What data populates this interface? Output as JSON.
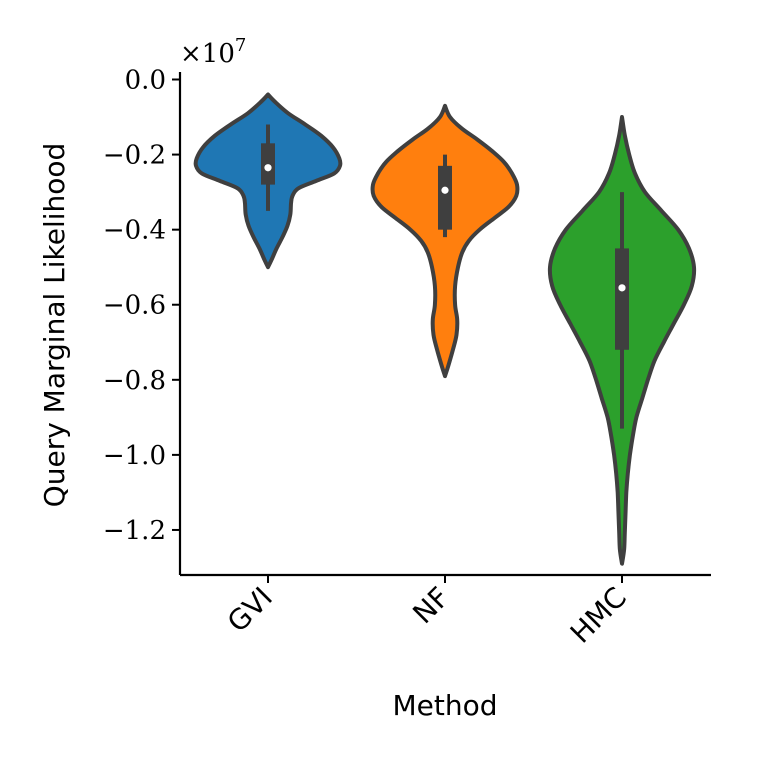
{
  "chart_data": {
    "type": "violin",
    "offset_label": "×10^7",
    "offset_base": "×10",
    "offset_exp": "7",
    "xlabel": "Method",
    "ylabel": "Query Marginal Likelihood",
    "ylim": [
      -1.32,
      0.02
    ],
    "y_ticks": [
      0.0,
      -0.2,
      -0.4,
      -0.6,
      -0.8,
      -1.0,
      -1.2
    ],
    "y_tick_labels": [
      "0.0",
      "−0.2",
      "−0.4",
      "−0.6",
      "−0.8",
      "−1.0",
      "−1.2"
    ],
    "categories": [
      "GVI",
      "NF",
      "HMC"
    ],
    "grid": false,
    "legend": "none",
    "violins": [
      {
        "category": "GVI",
        "color": "#1f77b4",
        "min": -0.5,
        "q1": -0.28,
        "median": -0.235,
        "q3": -0.17,
        "max": -0.04,
        "whisker_low": -0.35,
        "whisker_high": -0.12,
        "profile": [
          [
            -0.04,
            0.0
          ],
          [
            -0.06,
            0.1
          ],
          [
            -0.09,
            0.28
          ],
          [
            -0.12,
            0.52
          ],
          [
            -0.15,
            0.74
          ],
          [
            -0.18,
            0.9
          ],
          [
            -0.21,
            0.99
          ],
          [
            -0.23,
            1.0
          ],
          [
            -0.25,
            0.92
          ],
          [
            -0.27,
            0.67
          ],
          [
            -0.29,
            0.42
          ],
          [
            -0.31,
            0.34
          ],
          [
            -0.33,
            0.32
          ],
          [
            -0.36,
            0.31
          ],
          [
            -0.39,
            0.27
          ],
          [
            -0.42,
            0.2
          ],
          [
            -0.45,
            0.12
          ],
          [
            -0.48,
            0.05
          ],
          [
            -0.5,
            0.0
          ]
        ]
      },
      {
        "category": "NF",
        "color": "#ff7f0e",
        "min": -0.79,
        "q1": -0.4,
        "median": -0.295,
        "q3": -0.23,
        "max": -0.07,
        "whisker_low": -0.42,
        "whisker_high": -0.2,
        "profile": [
          [
            -0.07,
            0.0
          ],
          [
            -0.1,
            0.07
          ],
          [
            -0.13,
            0.23
          ],
          [
            -0.16,
            0.45
          ],
          [
            -0.19,
            0.65
          ],
          [
            -0.22,
            0.82
          ],
          [
            -0.25,
            0.93
          ],
          [
            -0.28,
            1.0
          ],
          [
            -0.31,
            0.99
          ],
          [
            -0.34,
            0.88
          ],
          [
            -0.37,
            0.68
          ],
          [
            -0.4,
            0.48
          ],
          [
            -0.43,
            0.33
          ],
          [
            -0.46,
            0.24
          ],
          [
            -0.5,
            0.18
          ],
          [
            -0.55,
            0.14
          ],
          [
            -0.6,
            0.14
          ],
          [
            -0.64,
            0.17
          ],
          [
            -0.68,
            0.16
          ],
          [
            -0.72,
            0.11
          ],
          [
            -0.76,
            0.05
          ],
          [
            -0.79,
            0.0
          ]
        ]
      },
      {
        "category": "HMC",
        "color": "#2ca02c",
        "min": -1.29,
        "q1": -0.72,
        "median": -0.555,
        "q3": -0.45,
        "max": -0.1,
        "whisker_low": -0.93,
        "whisker_high": -0.3,
        "profile": [
          [
            -0.1,
            0.0
          ],
          [
            -0.15,
            0.04
          ],
          [
            -0.2,
            0.1
          ],
          [
            -0.25,
            0.18
          ],
          [
            -0.3,
            0.32
          ],
          [
            -0.35,
            0.55
          ],
          [
            -0.4,
            0.78
          ],
          [
            -0.45,
            0.93
          ],
          [
            -0.5,
            1.0
          ],
          [
            -0.55,
            0.97
          ],
          [
            -0.6,
            0.86
          ],
          [
            -0.65,
            0.72
          ],
          [
            -0.7,
            0.58
          ],
          [
            -0.75,
            0.45
          ],
          [
            -0.8,
            0.36
          ],
          [
            -0.85,
            0.28
          ],
          [
            -0.9,
            0.2
          ],
          [
            -0.95,
            0.15
          ],
          [
            -1.0,
            0.11
          ],
          [
            -1.05,
            0.08
          ],
          [
            -1.1,
            0.06
          ],
          [
            -1.15,
            0.05
          ],
          [
            -1.2,
            0.04
          ],
          [
            -1.25,
            0.03
          ],
          [
            -1.29,
            0.0
          ]
        ]
      }
    ]
  }
}
